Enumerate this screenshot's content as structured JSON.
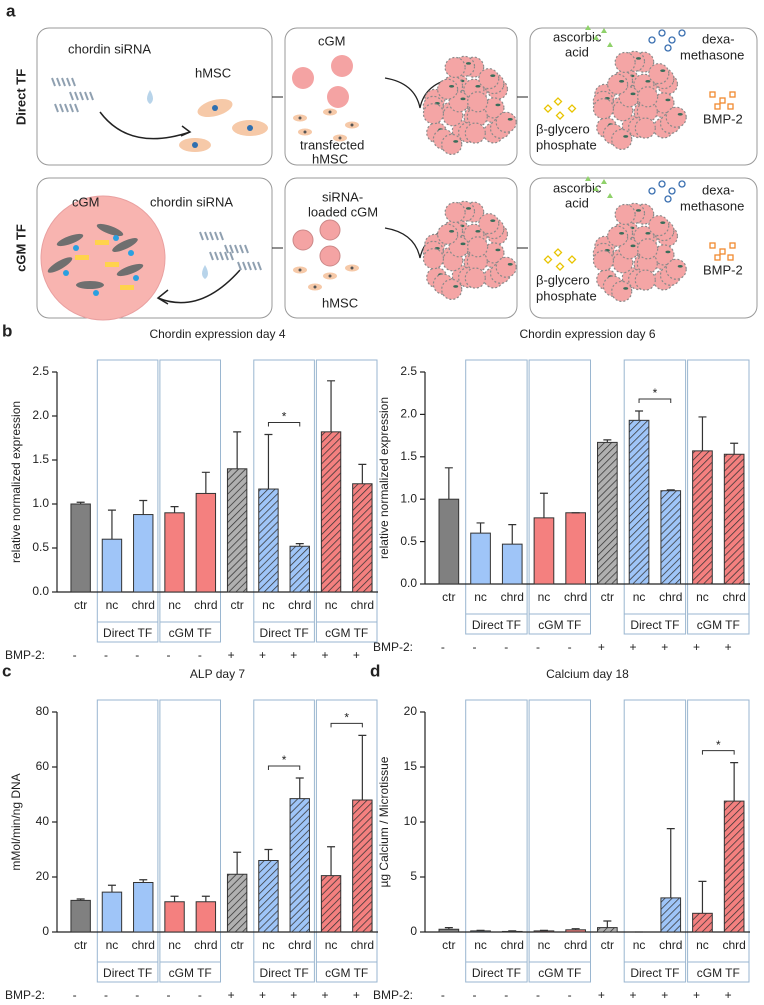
{
  "schematic": {
    "panel": "a",
    "direct": {
      "name": "Direct TF",
      "sirna": "chordin siRNA",
      "cell": "hMSC",
      "cgm": "cGM",
      "transfected": [
        "transfected",
        "hMSC"
      ]
    },
    "cgm": {
      "name": "cGM TF",
      "cgm": "cGM",
      "sirna": "chordin siRNA",
      "loaded": [
        "siRNA-",
        "loaded cGM"
      ],
      "cell": "hMSC"
    },
    "factors": {
      "ascorbic": [
        "ascorbic",
        "acid"
      ],
      "dexa": [
        "dexa-",
        "methasone"
      ],
      "glycero": [
        "β-glycero",
        "phosphate"
      ],
      "bmp": "BMP-2"
    }
  },
  "chart_data": [
    {
      "type": "bar",
      "panel": "b",
      "title": "Chordin expression  day 4",
      "ylabel": "relative normalized expression",
      "categories": [
        "ctr",
        "nc",
        "chrd",
        "nc",
        "chrd",
        "ctr",
        "nc",
        "chrd",
        "nc",
        "chrd"
      ],
      "groups": [
        null,
        "Direct TF",
        "Direct TF",
        "cGM TF",
        "cGM TF",
        null,
        "Direct TF",
        "Direct TF",
        "cGM TF",
        "cGM TF"
      ],
      "colors": [
        "#808080",
        "#9fc5f8",
        "#9fc5f8",
        "#f4807f",
        "#f4807f",
        "#b0b0b0",
        "#9fc5f8",
        "#9fc5f8",
        "#f4807f",
        "#f4807f"
      ],
      "hatched": [
        false,
        false,
        false,
        false,
        false,
        true,
        true,
        true,
        true,
        true
      ],
      "values": [
        1.0,
        0.6,
        0.88,
        0.9,
        1.12,
        1.4,
        1.17,
        0.52,
        1.82,
        1.23
      ],
      "errors": [
        0.02,
        0.33,
        0.16,
        0.07,
        0.24,
        0.42,
        0.62,
        0.03,
        0.58,
        0.22
      ],
      "ylim": [
        0,
        2.5
      ],
      "yticks": [
        {
          "value": 0,
          "label": "0.0"
        },
        0.5,
        {
          "value": 1,
          "label": "1.0"
        },
        1.5,
        {
          "value": 2,
          "label": "2.0"
        },
        2.5
      ],
      "treatment_label": "BMP-2:",
      "treatment": [
        "-",
        "-",
        "-",
        "-",
        "-",
        "+",
        "+",
        "+",
        "+",
        "+"
      ],
      "annotations": [
        {
          "text": "*",
          "from": 6,
          "to": 7
        }
      ]
    },
    {
      "type": "bar",
      "title": "Chordin expression  day 6",
      "ylabel": "relative normalized expression",
      "categories": [
        "ctr",
        "nc",
        "chrd",
        "nc",
        "chrd",
        "ctr",
        "nc",
        "chrd",
        "nc",
        "chrd"
      ],
      "groups": [
        null,
        "Direct TF",
        "Direct TF",
        "cGM TF",
        "cGM TF",
        null,
        "Direct TF",
        "Direct TF",
        "cGM TF",
        "cGM TF"
      ],
      "colors": [
        "#808080",
        "#9fc5f8",
        "#9fc5f8",
        "#f4807f",
        "#f4807f",
        "#b0b0b0",
        "#9fc5f8",
        "#9fc5f8",
        "#f4807f",
        "#f4807f"
      ],
      "hatched": [
        false,
        false,
        false,
        false,
        false,
        true,
        true,
        true,
        true,
        true
      ],
      "values": [
        1.0,
        0.6,
        0.47,
        0.78,
        0.84,
        1.67,
        1.93,
        1.1,
        1.57,
        1.53
      ],
      "errors": [
        0.37,
        0.12,
        0.23,
        0.29,
        0.0,
        0.03,
        0.11,
        0.01,
        0.4,
        0.13
      ],
      "ylim": [
        0,
        2.5
      ],
      "yticks": [
        {
          "value": 0,
          "label": "0.0"
        },
        0.5,
        {
          "value": 1,
          "label": "1.0"
        },
        1.5,
        {
          "value": 2,
          "label": "2.0"
        },
        2.5
      ],
      "treatment_label": "BMP-2:",
      "treatment": [
        "-",
        "-",
        "-",
        "-",
        "-",
        "+",
        "+",
        "+",
        "+",
        "+"
      ],
      "annotations": [
        {
          "text": "*",
          "from": 6,
          "to": 7
        }
      ]
    },
    {
      "type": "bar",
      "panel": "c",
      "title": "ALP day 7",
      "ylabel": "mMol/min/ng DNA",
      "categories": [
        "ctr",
        "nc",
        "chrd",
        "nc",
        "chrd",
        "ctr",
        "nc",
        "chrd",
        "nc",
        "chrd"
      ],
      "groups": [
        null,
        "Direct TF",
        "Direct TF",
        "cGM TF",
        "cGM TF",
        null,
        "Direct TF",
        "Direct TF",
        "cGM TF",
        "cGM TF"
      ],
      "colors": [
        "#808080",
        "#9fc5f8",
        "#9fc5f8",
        "#f4807f",
        "#f4807f",
        "#b0b0b0",
        "#9fc5f8",
        "#9fc5f8",
        "#f4807f",
        "#f4807f"
      ],
      "hatched": [
        false,
        false,
        false,
        false,
        false,
        true,
        true,
        true,
        true,
        true
      ],
      "values": [
        11.5,
        14.5,
        18,
        11,
        11,
        21,
        26,
        48.5,
        20.5,
        48
      ],
      "errors": [
        0.5,
        2.5,
        1,
        2,
        2,
        8,
        4,
        7.5,
        10.5,
        23.5
      ],
      "ylim": [
        0,
        80
      ],
      "yticks": [
        0,
        20,
        40,
        60,
        80
      ],
      "treatment_label": "BMP-2:",
      "treatment": [
        "-",
        "-",
        "-",
        "-",
        "-",
        "+",
        "+",
        "+",
        "+",
        "+"
      ],
      "annotations": [
        {
          "text": "*",
          "from": 6,
          "to": 7
        },
        {
          "text": "*",
          "from": 8,
          "to": 9
        }
      ]
    },
    {
      "type": "bar",
      "panel": "d",
      "title": "Calcium day 18",
      "ylabel": "µg Calcium / Microtissue",
      "categories": [
        "ctr",
        "nc",
        "chrd",
        "nc",
        "chrd",
        "ctr",
        "nc",
        "chrd",
        "nc",
        "chrd"
      ],
      "groups": [
        null,
        "Direct TF",
        "Direct TF",
        "cGM TF",
        "cGM TF",
        null,
        "Direct TF",
        "Direct TF",
        "cGM TF",
        "cGM TF"
      ],
      "colors": [
        "#808080",
        "#9fc5f8",
        "#9fc5f8",
        "#f4807f",
        "#f4807f",
        "#b0b0b0",
        "#9fc5f8",
        "#9fc5f8",
        "#f4807f",
        "#f4807f"
      ],
      "hatched": [
        false,
        false,
        false,
        false,
        false,
        true,
        true,
        true,
        true,
        true
      ],
      "values": [
        0.25,
        0.1,
        0.05,
        0.1,
        0.2,
        0.4,
        0,
        3.1,
        1.7,
        11.9
      ],
      "errors": [
        0.15,
        0.05,
        0.05,
        0.05,
        0.1,
        0.6,
        0,
        6.3,
        2.9,
        3.5
      ],
      "ylim": [
        0,
        20
      ],
      "yticks": [
        0,
        5,
        10,
        15,
        20
      ],
      "treatment_label": "BMP-2:",
      "treatment": [
        "-",
        "-",
        "-",
        "-",
        "-",
        "+",
        "+",
        "+",
        "+",
        "+"
      ],
      "annotations": [
        {
          "text": "*",
          "from": 8,
          "to": 9
        }
      ]
    }
  ]
}
